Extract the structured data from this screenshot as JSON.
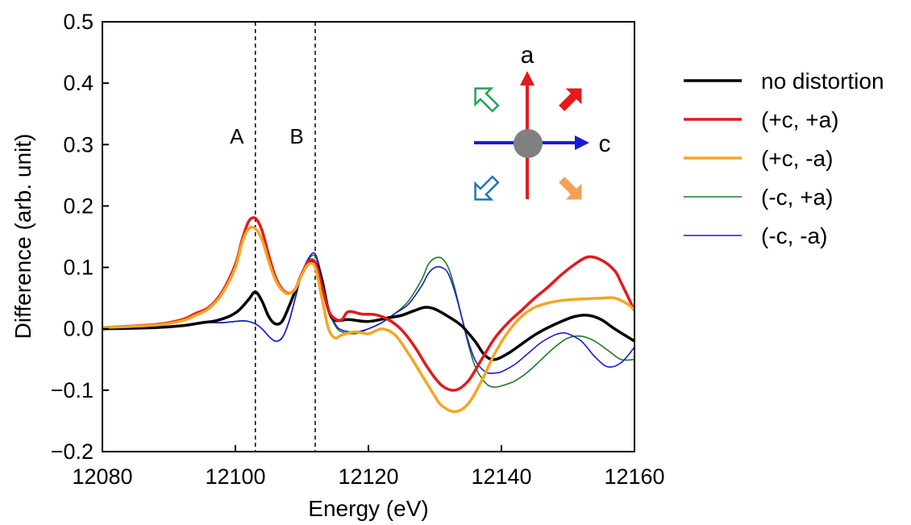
{
  "chart_data": {
    "type": "line",
    "xlabel": "Energy (eV)",
    "ylabel": "Difference (arb. unit)",
    "xlim": [
      12080,
      12160
    ],
    "ylim": [
      -0.2,
      0.5
    ],
    "xticks": [
      12080,
      12100,
      12120,
      12140,
      12160
    ],
    "xtick_labels": [
      "12080",
      "12100",
      "12120",
      "12140",
      "12160"
    ],
    "yticks": [
      -0.2,
      -0.1,
      0.0,
      0.1,
      0.2,
      0.3,
      0.4,
      0.5
    ],
    "ytick_labels": [
      "−0.2",
      "−0.1",
      "0.0",
      "0.1",
      "0.2",
      "0.3",
      "0.4",
      "0.5"
    ],
    "grid": false,
    "legend_position": "outside-right",
    "vlines": [
      {
        "x": 12103,
        "label": "A"
      },
      {
        "x": 12112,
        "label": "B"
      }
    ],
    "series": [
      {
        "name": "no distortion",
        "color": "#000000",
        "width": 3.5,
        "x": [
          12080,
          12088,
          12092,
          12095,
          12097,
          12099,
          12100.5,
          12102,
          12103,
          12104,
          12105,
          12106,
          12107,
          12108,
          12109,
          12110,
          12111,
          12112,
          12113,
          12114,
          12115,
          12117,
          12120,
          12123,
          12125,
          12127,
          12128.5,
          12130,
          12132,
          12134,
          12136,
          12137.5,
          12139,
          12141,
          12143,
          12145,
          12147,
          12149,
          12151,
          12153,
          12155,
          12157,
          12160
        ],
        "y": [
          0.0,
          0.002,
          0.005,
          0.01,
          0.013,
          0.02,
          0.03,
          0.048,
          0.06,
          0.045,
          0.02,
          0.008,
          0.012,
          0.035,
          0.062,
          0.09,
          0.105,
          0.108,
          0.08,
          0.03,
          0.014,
          0.015,
          0.012,
          0.018,
          0.022,
          0.03,
          0.035,
          0.032,
          0.02,
          0.005,
          -0.02,
          -0.043,
          -0.05,
          -0.04,
          -0.025,
          -0.01,
          0.002,
          0.012,
          0.02,
          0.022,
          0.015,
          0.0,
          -0.02
        ]
      },
      {
        "name": "(+c, +a)",
        "color": "#e41a1c",
        "width": 3.5,
        "x": [
          12080,
          12088,
          12092,
          12094,
          12096,
          12098,
          12100,
          12101,
          12102,
          12103,
          12104,
          12105,
          12106,
          12107,
          12108,
          12109,
          12110,
          12111,
          12112,
          12113,
          12114,
          12115,
          12116,
          12117,
          12119,
          12121,
          12123,
          12125,
          12127,
          12129,
          12131,
          12133,
          12135,
          12137,
          12139,
          12141,
          12143,
          12145,
          12147,
          12149,
          12151,
          12153,
          12155,
          12157,
          12158,
          12160
        ],
        "y": [
          0.002,
          0.007,
          0.015,
          0.025,
          0.035,
          0.06,
          0.105,
          0.145,
          0.175,
          0.18,
          0.16,
          0.12,
          0.085,
          0.065,
          0.058,
          0.065,
          0.09,
          0.11,
          0.108,
          0.07,
          0.03,
          0.016,
          0.015,
          0.028,
          0.024,
          0.023,
          0.015,
          -0.002,
          -0.03,
          -0.065,
          -0.092,
          -0.1,
          -0.085,
          -0.05,
          -0.015,
          0.01,
          0.03,
          0.05,
          0.068,
          0.088,
          0.105,
          0.117,
          0.112,
          0.095,
          0.075,
          0.03
        ]
      },
      {
        "name": "(+c, -a)",
        "color": "#f5a623",
        "width": 3.5,
        "x": [
          12080,
          12088,
          12092,
          12094,
          12096,
          12098,
          12100,
          12101,
          12102,
          12103,
          12104,
          12105,
          12106,
          12107,
          12108,
          12109,
          12110,
          12111,
          12112,
          12113,
          12114,
          12115,
          12116,
          12118,
          12120,
          12122,
          12124,
          12126,
          12128,
          12130,
          12131,
          12133,
          12135,
          12137,
          12139,
          12141,
          12143,
          12145,
          12147,
          12149,
          12151,
          12153,
          12155,
          12157,
          12159,
          12160
        ],
        "y": [
          0.002,
          0.006,
          0.013,
          0.022,
          0.033,
          0.057,
          0.1,
          0.14,
          0.163,
          0.163,
          0.145,
          0.11,
          0.08,
          0.063,
          0.057,
          0.065,
          0.088,
          0.105,
          0.1,
          0.05,
          0.0,
          -0.015,
          -0.01,
          -0.005,
          -0.008,
          0.0,
          -0.01,
          -0.04,
          -0.075,
          -0.11,
          -0.125,
          -0.135,
          -0.122,
          -0.085,
          -0.04,
          -0.005,
          0.02,
          0.035,
          0.042,
          0.046,
          0.048,
          0.049,
          0.05,
          0.05,
          0.04,
          0.03
        ]
      },
      {
        "name": "(-c, +a)",
        "color": "#1f7a1f",
        "width": 1.6,
        "x": [
          12080,
          12088,
          12092,
          12094,
          12096,
          12098,
          12100,
          12101,
          12102,
          12103,
          12104,
          12105,
          12106,
          12107,
          12108,
          12109,
          12110,
          12111,
          12112,
          12113,
          12114,
          12115,
          12116,
          12118,
          12120,
          12122,
          12124,
          12126,
          12128,
          12129,
          12130,
          12131,
          12132,
          12133,
          12134,
          12135,
          12136,
          12137,
          12138,
          12139,
          12140,
          12142,
          12144,
          12146,
          12148,
          12150,
          12152,
          12154,
          12156,
          12158,
          12160
        ],
        "y": [
          0.0,
          0.002,
          0.005,
          0.008,
          0.01,
          0.01,
          0.012,
          0.013,
          0.012,
          0.008,
          0.0,
          -0.012,
          -0.02,
          -0.015,
          0.01,
          0.05,
          0.09,
          0.113,
          0.118,
          0.08,
          0.03,
          0.005,
          -0.005,
          -0.008,
          0.0,
          0.01,
          0.025,
          0.045,
          0.08,
          0.105,
          0.115,
          0.115,
          0.1,
          0.065,
          0.02,
          -0.025,
          -0.06,
          -0.08,
          -0.092,
          -0.095,
          -0.093,
          -0.085,
          -0.07,
          -0.05,
          -0.03,
          -0.015,
          -0.012,
          -0.02,
          -0.035,
          -0.05,
          -0.05
        ]
      },
      {
        "name": "(-c, -a)",
        "color": "#1a1adb",
        "width": 1.6,
        "x": [
          12080,
          12088,
          12092,
          12094,
          12096,
          12098,
          12100,
          12101,
          12102,
          12103,
          12104,
          12105,
          12106,
          12107,
          12108,
          12109,
          12110,
          12111,
          12112,
          12113,
          12114,
          12115,
          12116,
          12118,
          12120,
          12122,
          12124,
          12126,
          12128,
          12129,
          12130,
          12131,
          12132,
          12133,
          12134,
          12135,
          12136,
          12137,
          12138,
          12139,
          12140,
          12142,
          12144,
          12146,
          12148,
          12149,
          12150,
          12152,
          12154,
          12156,
          12158,
          12160
        ],
        "y": [
          0.0,
          0.002,
          0.005,
          0.008,
          0.01,
          0.01,
          0.012,
          0.013,
          0.012,
          0.008,
          0.0,
          -0.012,
          -0.02,
          -0.015,
          0.01,
          0.05,
          0.09,
          0.115,
          0.122,
          0.085,
          0.035,
          0.008,
          -0.002,
          -0.005,
          0.0,
          0.01,
          0.025,
          0.04,
          0.07,
          0.09,
          0.1,
          0.1,
          0.09,
          0.06,
          0.02,
          -0.02,
          -0.05,
          -0.065,
          -0.072,
          -0.072,
          -0.07,
          -0.058,
          -0.04,
          -0.022,
          -0.01,
          -0.007,
          -0.008,
          -0.02,
          -0.045,
          -0.062,
          -0.055,
          -0.03
        ]
      }
    ]
  },
  "inset": {
    "axis_a_label": "a",
    "axis_c_label": "c",
    "colors": {
      "a_axis": "#e41a1c",
      "c_axis": "#1a1adb",
      "center": "#808080",
      "up_right": "#e41a1c",
      "down_right": "#f5a054",
      "up_left": "#22a455",
      "down_left": "#1f77b4"
    },
    "icons": [
      "up-left-hollow-arrow",
      "up-right-filled-arrow",
      "down-left-hollow-arrow",
      "down-right-filled-arrow"
    ]
  }
}
